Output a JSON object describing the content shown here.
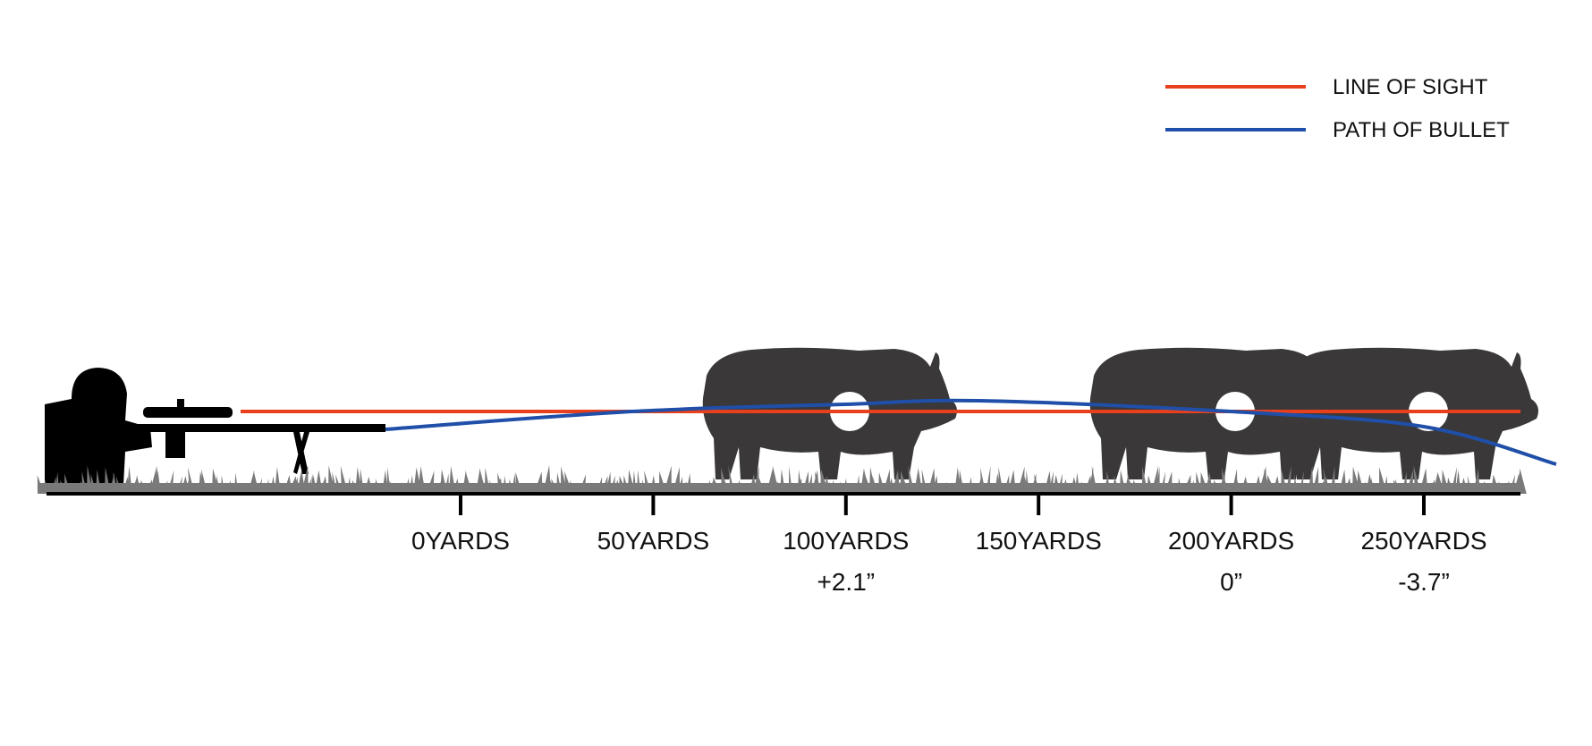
{
  "legend": [
    {
      "label": "LINE OF SIGHT",
      "color": "#e8401c"
    },
    {
      "label": "PATH OF BULLET",
      "color": "#1f4fa8"
    }
  ],
  "colors": {
    "target": "#3a3838",
    "grass": "#7a7a7a",
    "shooter": "#000000",
    "axis": "#000000"
  },
  "icons": {
    "shooter": "prone-shooter-with-scoped-rifle-icon",
    "target": "hog-silhouette-icon",
    "grass": "grass-strip"
  },
  "ticks": [
    {
      "yards": 0,
      "label": "0YARDS",
      "drop": ""
    },
    {
      "yards": 50,
      "label": "50YARDS",
      "drop": ""
    },
    {
      "yards": 100,
      "label": "100YARDS",
      "drop": "+2.1”"
    },
    {
      "yards": 150,
      "label": "150YARDS",
      "drop": ""
    },
    {
      "yards": 200,
      "label": "200YARDS",
      "drop": "0”"
    },
    {
      "yards": 250,
      "label": "250YARDS",
      "drop": "-3.7”"
    }
  ],
  "targets_at_yards": [
    100,
    200,
    250
  ]
}
